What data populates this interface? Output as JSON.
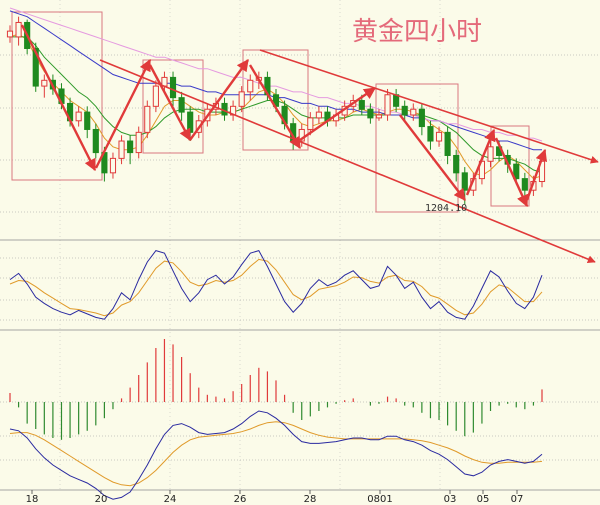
{
  "chart_data": {
    "type": "candlestick",
    "title": "黄金四小时",
    "annotation": "1204.10",
    "x_ticks": [
      "18",
      "20",
      "24",
      "26",
      "28",
      "0801",
      "03",
      "05",
      "07"
    ],
    "price_range": [
      1198,
      1272
    ],
    "candles": [
      [
        1262,
        1264,
        1260,
        1266
      ],
      [
        1262,
        1267,
        1259,
        1269
      ],
      [
        1267,
        1258,
        1256,
        1268
      ],
      [
        1258,
        1245,
        1243,
        1260
      ],
      [
        1245,
        1247,
        1241,
        1249
      ],
      [
        1247,
        1244,
        1242,
        1249
      ],
      [
        1244,
        1239,
        1237,
        1246
      ],
      [
        1239,
        1233,
        1231,
        1241
      ],
      [
        1233,
        1236,
        1231,
        1238
      ],
      [
        1236,
        1230,
        1227,
        1238
      ],
      [
        1230,
        1222,
        1220,
        1232
      ],
      [
        1222,
        1215,
        1212,
        1224
      ],
      [
        1215,
        1220,
        1213,
        1222
      ],
      [
        1220,
        1226,
        1218,
        1228
      ],
      [
        1226,
        1222,
        1218,
        1228
      ],
      [
        1222,
        1229,
        1220,
        1231
      ],
      [
        1229,
        1238,
        1227,
        1240
      ],
      [
        1238,
        1245,
        1236,
        1247
      ],
      [
        1245,
        1248,
        1243,
        1250
      ],
      [
        1248,
        1241,
        1238,
        1250
      ],
      [
        1241,
        1236,
        1233,
        1243
      ],
      [
        1236,
        1229,
        1226,
        1238
      ],
      [
        1229,
        1233,
        1227,
        1235
      ],
      [
        1233,
        1237,
        1231,
        1239
      ],
      [
        1237,
        1239,
        1235,
        1241
      ],
      [
        1239,
        1235,
        1233,
        1241
      ],
      [
        1235,
        1238,
        1233,
        1240
      ],
      [
        1238,
        1243,
        1236,
        1245
      ],
      [
        1243,
        1247,
        1240,
        1249
      ],
      [
        1247,
        1248,
        1244,
        1250
      ],
      [
        1248,
        1242,
        1240,
        1250
      ],
      [
        1242,
        1238,
        1236,
        1244
      ],
      [
        1238,
        1232,
        1230,
        1240
      ],
      [
        1232,
        1226,
        1223,
        1234
      ],
      [
        1226,
        1230,
        1224,
        1232
      ],
      [
        1230,
        1234,
        1228,
        1236
      ],
      [
        1234,
        1236,
        1232,
        1238
      ],
      [
        1236,
        1233,
        1231,
        1238
      ],
      [
        1233,
        1235,
        1231,
        1237
      ],
      [
        1235,
        1238,
        1233,
        1240
      ],
      [
        1238,
        1240,
        1236,
        1242
      ],
      [
        1240,
        1237,
        1235,
        1242
      ],
      [
        1237,
        1234,
        1232,
        1239
      ],
      [
        1234,
        1235,
        1233,
        1237
      ],
      [
        1235,
        1242,
        1233,
        1244
      ],
      [
        1242,
        1238,
        1236,
        1244
      ],
      [
        1238,
        1235,
        1233,
        1240
      ],
      [
        1235,
        1237,
        1233,
        1239
      ],
      [
        1237,
        1231,
        1228,
        1239
      ],
      [
        1231,
        1226,
        1223,
        1233
      ],
      [
        1226,
        1229,
        1224,
        1231
      ],
      [
        1229,
        1221,
        1218,
        1231
      ],
      [
        1221,
        1215,
        1212,
        1223
      ],
      [
        1215,
        1209,
        1204.1,
        1217
      ],
      [
        1209,
        1213,
        1207,
        1215
      ],
      [
        1213,
        1219,
        1211,
        1221
      ],
      [
        1219,
        1224,
        1217,
        1226
      ],
      [
        1224,
        1221,
        1219,
        1226
      ],
      [
        1221,
        1218,
        1215,
        1223
      ],
      [
        1218,
        1213,
        1211,
        1220
      ],
      [
        1213,
        1209,
        1207,
        1215
      ],
      [
        1209,
        1212,
        1207,
        1214
      ],
      [
        1212,
        1219,
        1210,
        1221
      ]
    ],
    "ma_series": [
      {
        "color": "#e09a2a",
        "values": [
          1262,
          1263,
          1261,
          1255,
          1250,
          1246,
          1243,
          1240,
          1238,
          1236,
          1232,
          1227,
          1224,
          1223,
          1223,
          1224,
          1228,
          1233,
          1238,
          1240,
          1240,
          1238,
          1236,
          1235,
          1235,
          1236,
          1236,
          1237,
          1240,
          1243,
          1244,
          1242,
          1239,
          1235,
          1232,
          1231,
          1232,
          1233,
          1233,
          1234,
          1236,
          1237,
          1236,
          1235,
          1236,
          1237,
          1237,
          1236,
          1235,
          1232,
          1230,
          1228,
          1224,
          1219,
          1215,
          1214,
          1216,
          1219,
          1221,
          1219,
          1216,
          1213,
          1214
        ]
      },
      {
        "color": "#2f9a2a",
        "values": [
          1262,
          1262,
          1262,
          1259,
          1255,
          1252,
          1249,
          1246,
          1243,
          1241,
          1238,
          1234,
          1231,
          1229,
          1228,
          1228,
          1229,
          1231,
          1234,
          1236,
          1237,
          1237,
          1237,
          1236,
          1236,
          1236,
          1236,
          1237,
          1238,
          1239,
          1240,
          1240,
          1239,
          1237,
          1235,
          1234,
          1234,
          1234,
          1234,
          1234,
          1235,
          1235,
          1235,
          1235,
          1235,
          1235,
          1235,
          1235,
          1235,
          1234,
          1233,
          1231,
          1229,
          1226,
          1223,
          1221,
          1220,
          1220,
          1220,
          1219,
          1218,
          1216,
          1215
        ]
      },
      {
        "color": "#3a3ac8",
        "values": [
          1271,
          1270,
          1269,
          1267,
          1265,
          1263,
          1261,
          1259,
          1257,
          1255,
          1253,
          1251,
          1249,
          1248,
          1247,
          1246,
          1246,
          1246,
          1246,
          1246,
          1245,
          1245,
          1244,
          1243,
          1243,
          1242,
          1242,
          1242,
          1242,
          1242,
          1242,
          1241,
          1241,
          1240,
          1239,
          1239,
          1238,
          1238,
          1237,
          1237,
          1237,
          1236,
          1236,
          1236,
          1235,
          1235,
          1235,
          1234,
          1234,
          1233,
          1233,
          1232,
          1231,
          1230,
          1229,
          1228,
          1227,
          1226,
          1226,
          1225,
          1224,
          1223,
          1223
        ]
      },
      {
        "color": "#e59ae0",
        "values": [
          1272,
          1271,
          1270,
          1269,
          1268,
          1267,
          1266,
          1265,
          1264,
          1263,
          1262,
          1261,
          1260,
          1259,
          1258,
          1257,
          1256,
          1255,
          1255,
          1254,
          1253,
          1252,
          1251,
          1251,
          1250,
          1249,
          1248,
          1248,
          1247,
          1246,
          1245,
          1245,
          1244,
          1243,
          1243,
          1242,
          1241,
          1241,
          1240,
          1239,
          1239,
          1238,
          1238,
          1237,
          1236,
          1236,
          1235,
          1235,
          1234,
          1233,
          1233,
          1232,
          1232,
          1231,
          1230,
          1230,
          1229,
          1229,
          1228,
          1228,
          1227,
          1227,
          1226
        ]
      }
    ],
    "kdj": {
      "k": [
        55,
        62,
        50,
        35,
        28,
        22,
        18,
        15,
        20,
        16,
        12,
        10,
        22,
        40,
        32,
        55,
        75,
        88,
        85,
        65,
        45,
        30,
        40,
        55,
        60,
        50,
        58,
        72,
        85,
        88,
        70,
        50,
        30,
        18,
        28,
        45,
        55,
        48,
        52,
        60,
        65,
        55,
        45,
        48,
        70,
        60,
        45,
        52,
        35,
        22,
        30,
        18,
        12,
        10,
        25,
        45,
        65,
        58,
        42,
        28,
        22,
        35,
        60
      ],
      "d": [
        50,
        54,
        53,
        47,
        40,
        34,
        28,
        22,
        21,
        19,
        17,
        14,
        17,
        26,
        30,
        40,
        54,
        68,
        76,
        74,
        64,
        52,
        48,
        50,
        54,
        52,
        54,
        60,
        70,
        78,
        76,
        66,
        52,
        38,
        32,
        36,
        44,
        46,
        48,
        52,
        58,
        57,
        53,
        51,
        58,
        60,
        54,
        53,
        47,
        37,
        34,
        27,
        20,
        15,
        17,
        27,
        41,
        49,
        46,
        38,
        30,
        30,
        41
      ]
    },
    "macd": {
      "hist": [
        0.5,
        -0.3,
        -1.2,
        -1.5,
        -1.8,
        -2.0,
        -2.1,
        -2.0,
        -1.8,
        -1.6,
        -1.3,
        -0.9,
        -0.4,
        0.2,
        0.8,
        1.5,
        2.2,
        3.0,
        3.5,
        3.2,
        2.5,
        1.6,
        0.8,
        0.4,
        0.3,
        0.2,
        0.6,
        1.0,
        1.5,
        1.9,
        1.7,
        1.2,
        0.4,
        -0.6,
        -1.0,
        -0.8,
        -0.5,
        -0.3,
        -0.1,
        0.1,
        0.2,
        0.0,
        -0.2,
        -0.1,
        0.3,
        0.2,
        -0.2,
        -0.3,
        -0.6,
        -0.9,
        -1.0,
        -1.3,
        -1.6,
        -1.9,
        -1.7,
        -1.2,
        -0.5,
        -0.2,
        -0.1,
        -0.3,
        -0.4,
        -0.2,
        0.7
      ],
      "dif": [
        1.0,
        0.8,
        0.0,
        -1.2,
        -2.2,
        -3.0,
        -3.6,
        -4.2,
        -4.6,
        -5.0,
        -5.6,
        -6.4,
        -6.8,
        -6.6,
        -6.0,
        -4.6,
        -3.0,
        -1.2,
        0.4,
        1.4,
        1.6,
        1.2,
        0.6,
        0.4,
        0.5,
        0.6,
        1.0,
        1.6,
        2.4,
        3.0,
        2.8,
        2.2,
        1.4,
        0.4,
        -0.4,
        -0.6,
        -0.6,
        -0.5,
        -0.4,
        -0.2,
        0.0,
        0.0,
        -0.2,
        -0.2,
        0.2,
        0.2,
        -0.2,
        -0.4,
        -0.8,
        -1.4,
        -1.8,
        -2.4,
        -3.2,
        -4.0,
        -4.2,
        -3.8,
        -3.0,
        -2.6,
        -2.4,
        -2.6,
        -2.8,
        -2.6,
        -1.8
      ],
      "dea": [
        0.5,
        0.6,
        0.6,
        0.3,
        -0.2,
        -0.8,
        -1.4,
        -2.0,
        -2.6,
        -3.2,
        -3.8,
        -4.4,
        -4.9,
        -5.2,
        -5.3,
        -5.0,
        -4.4,
        -3.6,
        -2.6,
        -1.6,
        -0.8,
        -0.2,
        0.1,
        0.2,
        0.3,
        0.4,
        0.5,
        0.7,
        1.0,
        1.4,
        1.7,
        1.8,
        1.7,
        1.4,
        1.0,
        0.6,
        0.3,
        0.1,
        0.0,
        -0.1,
        -0.1,
        -0.1,
        -0.1,
        -0.1,
        -0.1,
        -0.1,
        -0.1,
        -0.2,
        -0.3,
        -0.5,
        -0.8,
        -1.1,
        -1.5,
        -2.0,
        -2.4,
        -2.7,
        -2.8,
        -2.8,
        -2.7,
        -2.7,
        -2.7,
        -2.7,
        -2.6
      ]
    }
  }
}
